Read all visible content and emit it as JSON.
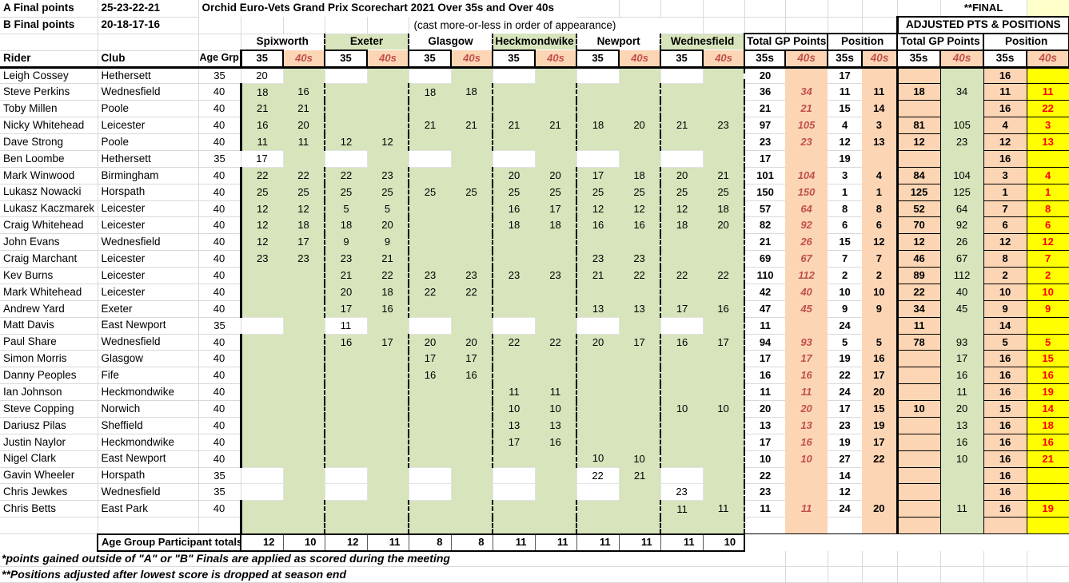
{
  "meta": {
    "a_final_label": "A Final points",
    "a_final_points": "25-23-22-21",
    "b_final_label": "B Final points",
    "b_final_points": "20-18-17-16",
    "title": "Orchid Euro-Vets Grand Prix Scorechart 2021 Over 35s and Over 40s",
    "cast_note": "(cast more-or-less in order of appearance)",
    "final_flag": "**FINAL",
    "adjusted_header": "ADJUSTED PTS & POSITIONS",
    "totals_label": "Age Group Participant totals",
    "footnote1": "*points gained outside of \"A\" or \"B\" Finals are applied as scored during the meeting",
    "footnote2": "**Positions adjusted after lowest score is dropped at season end"
  },
  "columns": {
    "rider": "Rider",
    "club": "Club",
    "age": "Age Grp",
    "venues": [
      "Spixworth",
      "Exeter",
      "Glasgow",
      "Heckmondwike",
      "Newport",
      "Wednesfield"
    ],
    "sub35": "35",
    "sub40": "40s",
    "total_gp": "Total GP Points",
    "position": "Position",
    "sub35s": "35s",
    "sub40s": "40s"
  },
  "riders": [
    {
      "name": "Leigh Cossey",
      "club": "Hethersett",
      "age": "35",
      "scores": [
        "20",
        "",
        "",
        "",
        "",
        "",
        "",
        "",
        "",
        "",
        "",
        ""
      ],
      "tot35": "20",
      "tot40": "",
      "pos35": "17",
      "pos40": "",
      "adj35": "",
      "adj40": "",
      "apos35": "16",
      "apos40": ""
    },
    {
      "name": "Steve Perkins",
      "club": "Wednesfield",
      "age": "40",
      "scores": [
        "18",
        "16",
        "",
        "",
        "18",
        "18",
        "",
        "",
        "",
        "",
        "",
        ""
      ],
      "tot35": "36",
      "tot40": "34",
      "pos35": "11",
      "pos40": "11",
      "adj35": "18",
      "adj40": "34",
      "apos35": "11",
      "apos40": "11"
    },
    {
      "name": "Toby Millen",
      "club": "Poole",
      "age": "40",
      "scores": [
        "21",
        "21",
        "",
        "",
        "",
        "",
        "",
        "",
        "",
        "",
        "",
        ""
      ],
      "tot35": "21",
      "tot40": "21",
      "pos35": "15",
      "pos40": "14",
      "adj35": "",
      "adj40": "",
      "apos35": "16",
      "apos40": "22"
    },
    {
      "name": "Nicky Whitehead",
      "club": "Leicester",
      "age": "40",
      "scores": [
        "16",
        "20",
        "",
        "",
        "21",
        "21",
        "21",
        "21",
        "18",
        "20",
        "21",
        "23"
      ],
      "tot35": "97",
      "tot40": "105",
      "pos35": "4",
      "pos40": "3",
      "adj35": "81",
      "adj40": "105",
      "apos35": "4",
      "apos40": "3"
    },
    {
      "name": "Dave Strong",
      "club": "Poole",
      "age": "40",
      "scores": [
        "11",
        "11",
        "12",
        "12",
        "",
        "",
        "",
        "",
        "",
        "",
        "",
        ""
      ],
      "tot35": "23",
      "tot40": "23",
      "pos35": "12",
      "pos40": "13",
      "adj35": "12",
      "adj40": "23",
      "apos35": "12",
      "apos40": "13"
    },
    {
      "name": "Ben Loombe",
      "club": "Hethersett",
      "age": "35",
      "scores": [
        "17",
        "",
        "",
        "",
        "",
        "",
        "",
        "",
        "",
        "",
        "",
        ""
      ],
      "tot35": "17",
      "tot40": "",
      "pos35": "19",
      "pos40": "",
      "adj35": "",
      "adj40": "",
      "apos35": "16",
      "apos40": ""
    },
    {
      "name": "Mark Winwood",
      "club": "Birmingham",
      "age": "40",
      "scores": [
        "22",
        "22",
        "22",
        "23",
        "",
        "",
        "20",
        "20",
        "17",
        "18",
        "20",
        "21"
      ],
      "tot35": "101",
      "tot40": "104",
      "pos35": "3",
      "pos40": "4",
      "adj35": "84",
      "adj40": "104",
      "apos35": "3",
      "apos40": "4"
    },
    {
      "name": "Lukasz Nowacki",
      "club": "Horspath",
      "age": "40",
      "scores": [
        "25",
        "25",
        "25",
        "25",
        "25",
        "25",
        "25",
        "25",
        "25",
        "25",
        "25",
        "25"
      ],
      "tot35": "150",
      "tot40": "150",
      "pos35": "1",
      "pos40": "1",
      "adj35": "125",
      "adj40": "125",
      "apos35": "1",
      "apos40": "1"
    },
    {
      "name": "Lukasz Kaczmarek",
      "club": "Leicester",
      "age": "40",
      "scores": [
        "12",
        "12",
        "5",
        "5",
        "",
        "",
        "16",
        "17",
        "12",
        "12",
        "12",
        "18"
      ],
      "tot35": "57",
      "tot40": "64",
      "pos35": "8",
      "pos40": "8",
      "adj35": "52",
      "adj40": "64",
      "apos35": "7",
      "apos40": "8"
    },
    {
      "name": "Craig Whitehead",
      "club": "Leicester",
      "age": "40",
      "scores": [
        "12",
        "18",
        "18",
        "20",
        "",
        "",
        "18",
        "18",
        "16",
        "16",
        "18",
        "20"
      ],
      "tot35": "82",
      "tot40": "92",
      "pos35": "6",
      "pos40": "6",
      "adj35": "70",
      "adj40": "92",
      "apos35": "6",
      "apos40": "6"
    },
    {
      "name": "John Evans",
      "club": "Wednesfield",
      "age": "40",
      "scores": [
        "12",
        "17",
        "9",
        "9",
        "",
        "",
        "",
        "",
        "",
        "",
        "",
        ""
      ],
      "tot35": "21",
      "tot40": "26",
      "pos35": "15",
      "pos40": "12",
      "adj35": "12",
      "adj40": "26",
      "apos35": "12",
      "apos40": "12"
    },
    {
      "name": "Craig Marchant",
      "club": "Leicester",
      "age": "40",
      "scores": [
        "23",
        "23",
        "23",
        "21",
        "",
        "",
        "",
        "",
        "23",
        "23",
        "",
        ""
      ],
      "tot35": "69",
      "tot40": "67",
      "pos35": "7",
      "pos40": "7",
      "adj35": "46",
      "adj40": "67",
      "apos35": "8",
      "apos40": "7"
    },
    {
      "name": "Kev Burns",
      "club": "Leicester",
      "age": "40",
      "scores": [
        "",
        "",
        "21",
        "22",
        "23",
        "23",
        "23",
        "23",
        "21",
        "22",
        "22",
        "22"
      ],
      "tot35": "110",
      "tot40": "112",
      "pos35": "2",
      "pos40": "2",
      "adj35": "89",
      "adj40": "112",
      "apos35": "2",
      "apos40": "2"
    },
    {
      "name": "Mark Whitehead",
      "club": "Leicester",
      "age": "40",
      "scores": [
        "",
        "",
        "20",
        "18",
        "22",
        "22",
        "",
        "",
        "",
        "",
        "",
        ""
      ],
      "tot35": "42",
      "tot40": "40",
      "pos35": "10",
      "pos40": "10",
      "adj35": "22",
      "adj40": "40",
      "apos35": "10",
      "apos40": "10"
    },
    {
      "name": "Andrew Yard",
      "club": "Exeter",
      "age": "40",
      "scores": [
        "",
        "",
        "17",
        "16",
        "",
        "",
        "",
        "",
        "13",
        "13",
        "17",
        "16"
      ],
      "tot35": "47",
      "tot40": "45",
      "pos35": "9",
      "pos40": "9",
      "adj35": "34",
      "adj40": "45",
      "apos35": "9",
      "apos40": "9"
    },
    {
      "name": "Matt Davis",
      "club": "East Newport",
      "age": "35",
      "scores": [
        "",
        "",
        "11",
        "",
        "",
        "",
        "",
        "",
        "",
        "",
        "",
        ""
      ],
      "tot35": "11",
      "tot40": "",
      "pos35": "24",
      "pos40": "",
      "adj35": "11",
      "adj40": "",
      "apos35": "14",
      "apos40": ""
    },
    {
      "name": "Paul Share",
      "club": "Wednesfield",
      "age": "40",
      "scores": [
        "",
        "",
        "16",
        "17",
        "20",
        "20",
        "22",
        "22",
        "20",
        "17",
        "16",
        "17"
      ],
      "tot35": "94",
      "tot40": "93",
      "pos35": "5",
      "pos40": "5",
      "adj35": "78",
      "adj40": "93",
      "apos35": "5",
      "apos40": "5"
    },
    {
      "name": "Simon Morris",
      "club": "Glasgow",
      "age": "40",
      "scores": [
        "",
        "",
        "",
        "",
        "17",
        "17",
        "",
        "",
        "",
        "",
        "",
        ""
      ],
      "tot35": "17",
      "tot40": "17",
      "pos35": "19",
      "pos40": "16",
      "adj35": "",
      "adj40": "17",
      "apos35": "16",
      "apos40": "15"
    },
    {
      "name": "Danny Peoples",
      "club": "Fife",
      "age": "40",
      "scores": [
        "",
        "",
        "",
        "",
        "16",
        "16",
        "",
        "",
        "",
        "",
        "",
        ""
      ],
      "tot35": "16",
      "tot40": "16",
      "pos35": "22",
      "pos40": "17",
      "adj35": "",
      "adj40": "16",
      "apos35": "16",
      "apos40": "16"
    },
    {
      "name": "Ian Johnson",
      "club": "Heckmondwike",
      "age": "40",
      "scores": [
        "",
        "",
        "",
        "",
        "",
        "",
        "11",
        "11",
        "",
        "",
        "",
        ""
      ],
      "tot35": "11",
      "tot40": "11",
      "pos35": "24",
      "pos40": "20",
      "adj35": "",
      "adj40": "11",
      "apos35": "16",
      "apos40": "19"
    },
    {
      "name": "Steve Copping",
      "club": "Norwich",
      "age": "40",
      "scores": [
        "",
        "",
        "",
        "",
        "",
        "",
        "10",
        "10",
        "",
        "",
        "10",
        "10"
      ],
      "tot35": "20",
      "tot40": "20",
      "pos35": "17",
      "pos40": "15",
      "adj35": "10",
      "adj40": "20",
      "apos35": "15",
      "apos40": "14"
    },
    {
      "name": "Dariusz Pilas",
      "club": "Sheffield",
      "age": "40",
      "scores": [
        "",
        "",
        "",
        "",
        "",
        "",
        "13",
        "13",
        "",
        "",
        "",
        ""
      ],
      "tot35": "13",
      "tot40": "13",
      "pos35": "23",
      "pos40": "19",
      "adj35": "",
      "adj40": "13",
      "apos35": "16",
      "apos40": "18"
    },
    {
      "name": "Justin Naylor",
      "club": "Heckmondwike",
      "age": "40",
      "scores": [
        "",
        "",
        "",
        "",
        "",
        "",
        "17",
        "16",
        "",
        "",
        "",
        ""
      ],
      "tot35": "17",
      "tot40": "16",
      "pos35": "19",
      "pos40": "17",
      "adj35": "",
      "adj40": "16",
      "apos35": "16",
      "apos40": "16"
    },
    {
      "name": "Nigel Clark",
      "club": "East Newport",
      "age": "40",
      "scores": [
        "",
        "",
        "",
        "",
        "",
        "",
        "",
        "",
        "10",
        "10",
        "",
        ""
      ],
      "tot35": "10",
      "tot40": "10",
      "pos35": "27",
      "pos40": "22",
      "adj35": "",
      "adj40": "10",
      "apos35": "16",
      "apos40": "21"
    },
    {
      "name": "Gavin Wheeler",
      "club": "Horspath",
      "age": "35",
      "scores": [
        "",
        "",
        "",
        "",
        "",
        "",
        "",
        "",
        "22",
        "21",
        "",
        ""
      ],
      "tot35": "22",
      "tot40": "",
      "pos35": "14",
      "pos40": "",
      "adj35": "",
      "adj40": "",
      "apos35": "16",
      "apos40": ""
    },
    {
      "name": "Chris Jewkes",
      "club": "Wednesfield",
      "age": "35",
      "scores": [
        "",
        "",
        "",
        "",
        "",
        "",
        "",
        "",
        "",
        "",
        "23",
        ""
      ],
      "tot35": "23",
      "tot40": "",
      "pos35": "12",
      "pos40": "",
      "adj35": "",
      "adj40": "",
      "apos35": "16",
      "apos40": ""
    },
    {
      "name": "Chris Betts",
      "club": "East Park",
      "age": "40",
      "scores": [
        "",
        "",
        "",
        "",
        "",
        "",
        "",
        "",
        "",
        "",
        "11",
        "11"
      ],
      "tot35": "11",
      "tot40": "11",
      "pos35": "24",
      "pos40": "20",
      "adj35": "",
      "adj40": "11",
      "apos35": "16",
      "apos40": "19"
    }
  ],
  "participant_totals": [
    "12",
    "10",
    "12",
    "11",
    "8",
    "8",
    "11",
    "11",
    "11",
    "11",
    "11",
    "10"
  ],
  "colors": {
    "venue_green": "#d7e4bc",
    "col40_peach": "#fcd5b4",
    "adjusted_pos_yellow": "#ffff00",
    "adjusted_pos_red": "#ff0000",
    "forty_header_red": "#c0504d",
    "pale_yellow_corner": "#ffffcc"
  }
}
